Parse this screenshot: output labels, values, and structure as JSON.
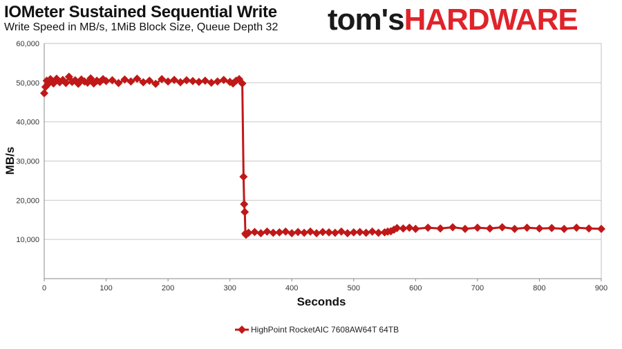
{
  "title": "IOMeter Sustained Sequential Write",
  "subtitle": "Write Speed in MB/s, 1MiB Block Size, Queue Depth 32",
  "logo": {
    "part1": "tom's",
    "part2": "HARDWARE",
    "color1": "#1a1a1a",
    "color2": "#e0232a"
  },
  "chart_data": {
    "type": "line",
    "title": "IOMeter Sustained Sequential Write",
    "subtitle": "Write Speed in MB/s, 1MiB Block Size, Queue Depth 32",
    "xlabel": "Seconds",
    "ylabel": "MB/s",
    "xlim": [
      0,
      900
    ],
    "ylim": [
      0,
      60000
    ],
    "x_ticks": [
      "0",
      "100",
      "200",
      "300",
      "400",
      "500",
      "600",
      "700",
      "800",
      "900"
    ],
    "y_ticks": [
      "",
      "10,000",
      "20,000",
      "30,000",
      "40,000",
      "50,000",
      "60,000"
    ],
    "grid": "horizontal",
    "legend_position": "bottom",
    "series": [
      {
        "name": "HighPoint RocketAIC 7608AW64T 64TB",
        "color": "#c01818",
        "marker": "diamond",
        "x": [
          0,
          2,
          4,
          6,
          10,
          15,
          20,
          25,
          30,
          35,
          40,
          45,
          50,
          55,
          60,
          65,
          70,
          75,
          80,
          85,
          90,
          95,
          100,
          110,
          120,
          130,
          140,
          150,
          160,
          170,
          180,
          190,
          200,
          210,
          220,
          230,
          240,
          250,
          260,
          270,
          280,
          290,
          300,
          305,
          310,
          315,
          320,
          322,
          323,
          324,
          325,
          326,
          330,
          340,
          350,
          360,
          370,
          380,
          390,
          400,
          410,
          420,
          430,
          440,
          450,
          460,
          470,
          480,
          490,
          500,
          510,
          520,
          530,
          540,
          550,
          555,
          560,
          565,
          570,
          580,
          590,
          600,
          620,
          640,
          660,
          680,
          700,
          720,
          740,
          760,
          780,
          800,
          820,
          840,
          860,
          880,
          900
        ],
        "y": [
          47300,
          48900,
          50500,
          49600,
          50900,
          49800,
          51000,
          50100,
          50700,
          49900,
          51500,
          50200,
          50600,
          49700,
          50800,
          50300,
          50000,
          51100,
          49800,
          50500,
          50200,
          50900,
          50400,
          50600,
          49900,
          50800,
          50300,
          51000,
          50100,
          50500,
          49700,
          50900,
          50300,
          50700,
          50100,
          50600,
          50400,
          50200,
          50500,
          50000,
          50300,
          50700,
          50200,
          49800,
          50500,
          50900,
          49800,
          26000,
          19000,
          17000,
          11500,
          11200,
          11700,
          11900,
          11600,
          12000,
          11700,
          11800,
          12000,
          11600,
          11900,
          11700,
          12000,
          11600,
          11900,
          11800,
          11700,
          12000,
          11600,
          11800,
          11900,
          11700,
          12000,
          11700,
          11800,
          12000,
          12100,
          12500,
          12900,
          12800,
          13000,
          12700,
          13000,
          12800,
          13100,
          12700,
          13000,
          12800,
          13100,
          12700,
          13000,
          12800,
          12900,
          12700,
          13000,
          12800,
          12700
        ]
      }
    ]
  }
}
